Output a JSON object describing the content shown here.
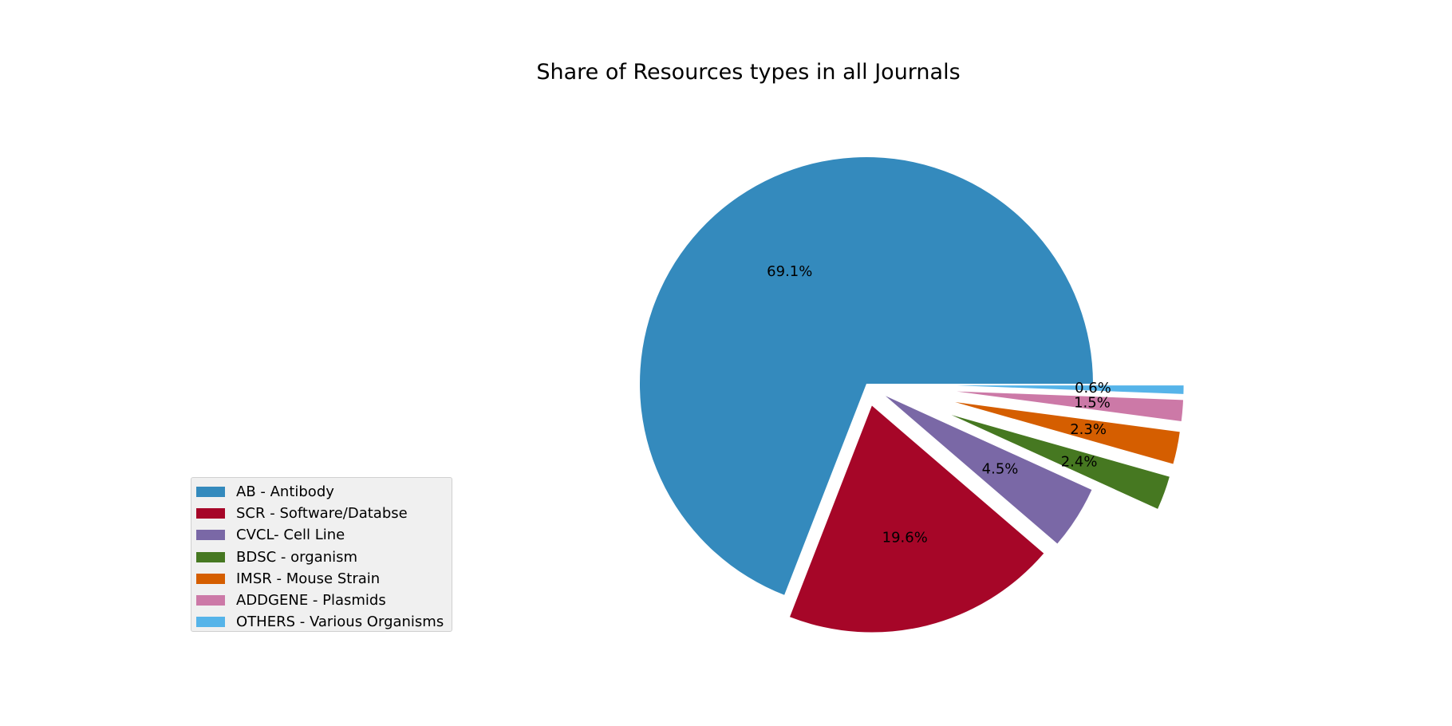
{
  "chart_data": {
    "type": "pie",
    "title": "Share of Resources types in all Journals",
    "start_angle_deg": 0,
    "direction": "counterclockwise",
    "slices": [
      {
        "label": "AB - Antibody",
        "value": 69.1,
        "display": "69.1%",
        "color": "#348abd",
        "explode": 0.0
      },
      {
        "label": "SCR - Software/Databse",
        "value": 19.6,
        "display": "19.6%",
        "color": "#a60628",
        "explode": 0.1
      },
      {
        "label": "CVCL- Cell Line",
        "value": 4.5,
        "display": "4.5%",
        "color": "#7a68a6",
        "explode": 0.1
      },
      {
        "label": "BDSC - organism",
        "value": 2.4,
        "display": "2.4%",
        "color": "#467821",
        "explode": 0.4
      },
      {
        "label": "IMSR - Mouse Strain",
        "value": 2.3,
        "display": "2.3%",
        "color": "#d55e00",
        "explode": 0.4
      },
      {
        "label": "ADDGENE - Plasmids",
        "value": 1.5,
        "display": "1.5%",
        "color": "#cc79a7",
        "explode": 0.4
      },
      {
        "label": "OTHERS - Various Organisms",
        "value": 0.6,
        "display": "0.6%",
        "color": "#56b4e9",
        "explode": 0.4
      }
    ],
    "legend_position": "lower-left"
  }
}
